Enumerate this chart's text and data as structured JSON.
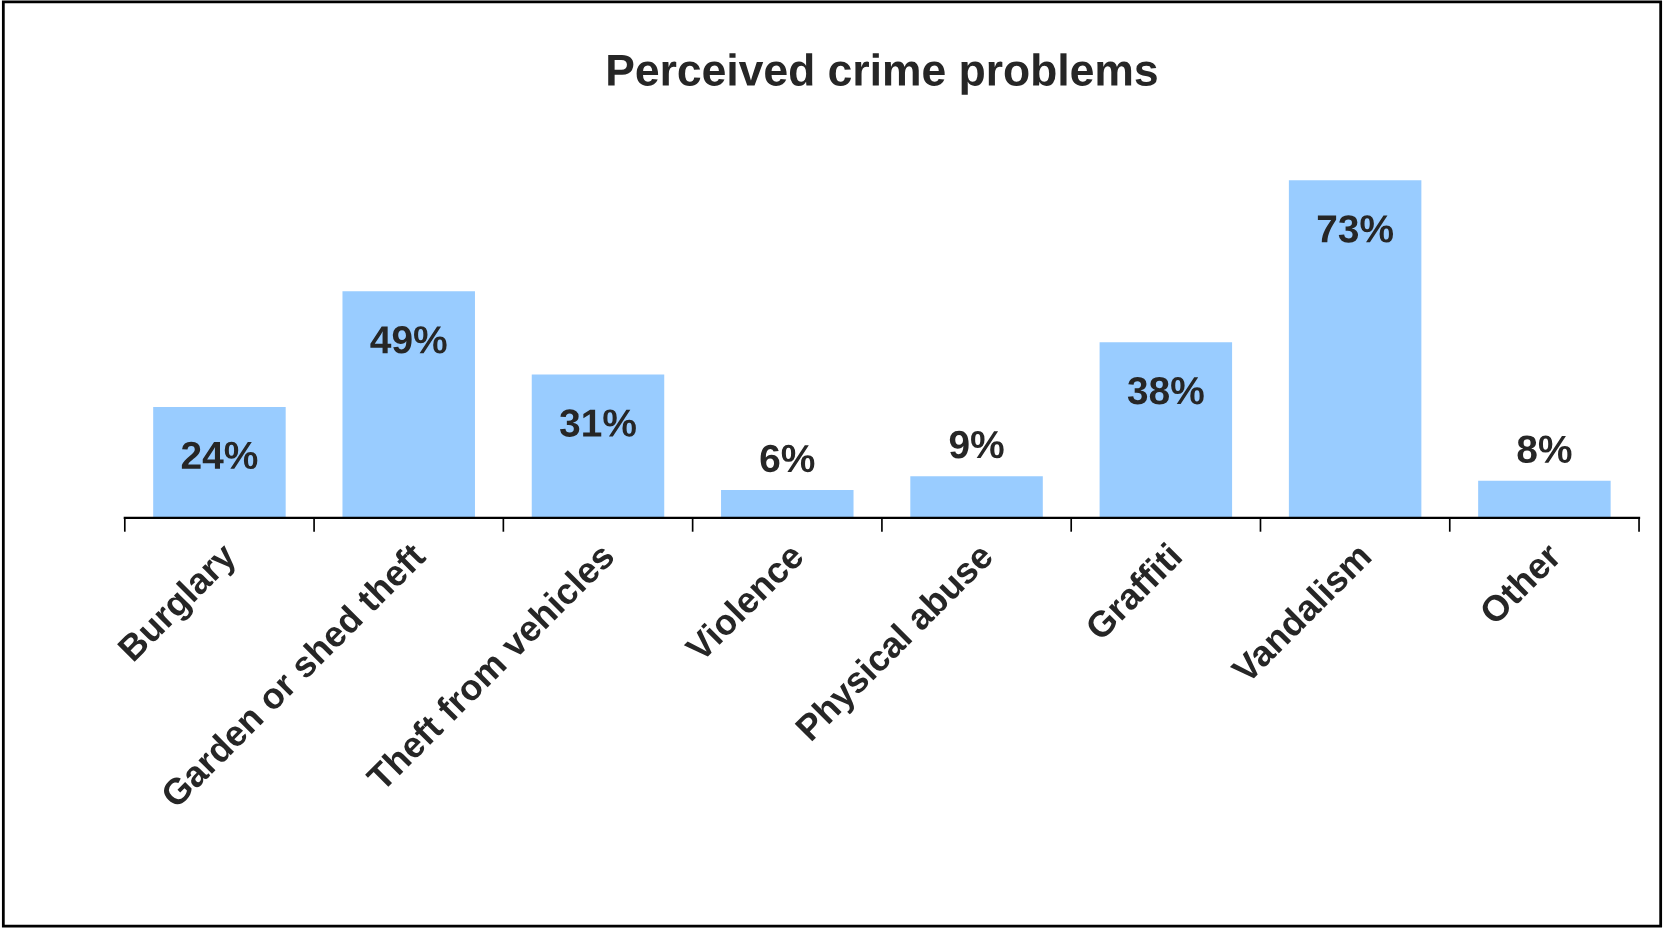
{
  "chart_data": {
    "type": "bar",
    "title": "Perceived crime problems",
    "categories": [
      "Burglary",
      "Garden or shed theft",
      "Theft from vehicles",
      "Violence",
      "Physical abuse",
      "Graffiti",
      "Vandalism",
      "Other"
    ],
    "value_labels": [
      "24%",
      "49%",
      "31%",
      "6%",
      "9%",
      "38%",
      "73%",
      "8%"
    ],
    "values": [
      24,
      49,
      31,
      6,
      9,
      38,
      73,
      8
    ],
    "color": "#99ccff",
    "grid": false,
    "legend": false
  }
}
